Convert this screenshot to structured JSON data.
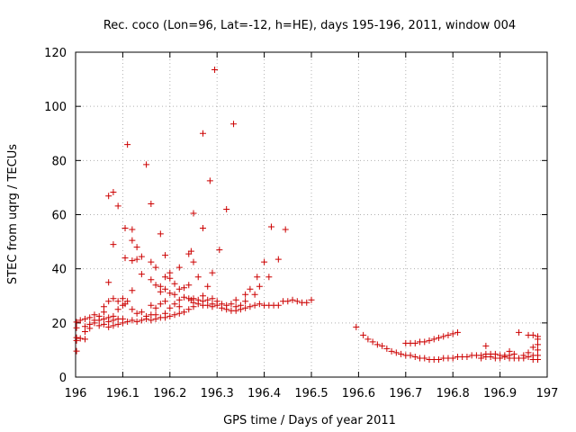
{
  "chart_data": {
    "type": "scatter",
    "title": "Rec. coco (Lon=96, Lat=-12, h=HE), days 195-196, 2011, window 004",
    "xlabel": "GPS time / Days of year 2011",
    "ylabel": "STEC from uqrg / TECUs",
    "xlim": [
      196,
      197
    ],
    "ylim": [
      0,
      120
    ],
    "grid": true,
    "marker": "+",
    "color": "#cc0000",
    "xticks": [
      {
        "value": 196,
        "label": "196"
      },
      {
        "value": 196.1,
        "label": "196.1"
      },
      {
        "value": 196.2,
        "label": "196.2"
      },
      {
        "value": 196.3,
        "label": "196.3"
      },
      {
        "value": 196.4,
        "label": "196.4"
      },
      {
        "value": 196.5,
        "label": "196.5"
      },
      {
        "value": 196.6,
        "label": "196.6"
      },
      {
        "value": 196.7,
        "label": "196.7"
      },
      {
        "value": 196.8,
        "label": "196.8"
      },
      {
        "value": 196.9,
        "label": "196.9"
      },
      {
        "value": 197,
        "label": "197"
      }
    ],
    "yticks": [
      {
        "value": 0,
        "label": "0"
      },
      {
        "value": 20,
        "label": "20"
      },
      {
        "value": 40,
        "label": "40"
      },
      {
        "value": 60,
        "label": "60"
      },
      {
        "value": 80,
        "label": "80"
      },
      {
        "value": 100,
        "label": "100"
      },
      {
        "value": 120,
        "label": "120"
      }
    ],
    "points": [
      [
        196.002,
        9.6
      ],
      [
        196.002,
        13.5
      ],
      [
        196.002,
        14.6
      ],
      [
        196.002,
        18.2
      ],
      [
        196.002,
        20.3
      ],
      [
        196.01,
        14.3
      ],
      [
        196.01,
        21.0
      ],
      [
        196.02,
        14.0
      ],
      [
        196.02,
        16.8
      ],
      [
        196.02,
        18.7
      ],
      [
        196.02,
        21.5
      ],
      [
        196.03,
        18.0
      ],
      [
        196.03,
        19.5
      ],
      [
        196.03,
        22.0
      ],
      [
        196.04,
        20.0
      ],
      [
        196.04,
        21.0
      ],
      [
        196.04,
        23.0
      ],
      [
        196.05,
        19.0
      ],
      [
        196.05,
        21.0
      ],
      [
        196.05,
        22.5
      ],
      [
        196.06,
        19.5
      ],
      [
        196.06,
        21.5
      ],
      [
        196.06,
        24.0
      ],
      [
        196.06,
        26.0
      ],
      [
        196.07,
        18.5
      ],
      [
        196.07,
        20.5
      ],
      [
        196.07,
        22.0
      ],
      [
        196.07,
        28.0
      ],
      [
        196.07,
        35.0
      ],
      [
        196.07,
        66.9
      ],
      [
        196.08,
        19.0
      ],
      [
        196.08,
        21.0
      ],
      [
        196.08,
        22.5
      ],
      [
        196.08,
        29.0
      ],
      [
        196.08,
        49.0
      ],
      [
        196.08,
        68.3
      ],
      [
        196.09,
        19.5
      ],
      [
        196.09,
        21.5
      ],
      [
        196.09,
        25.0
      ],
      [
        196.09,
        28.0
      ],
      [
        196.09,
        63.2
      ],
      [
        196.1,
        20.0
      ],
      [
        196.1,
        21.5
      ],
      [
        196.1,
        26.5
      ],
      [
        196.1,
        29.0
      ],
      [
        196.105,
        27.0
      ],
      [
        196.105,
        44.0
      ],
      [
        196.105,
        55.0
      ],
      [
        196.11,
        20.5
      ],
      [
        196.11,
        28.0
      ],
      [
        196.11,
        85.9
      ],
      [
        196.12,
        21.0
      ],
      [
        196.12,
        25.0
      ],
      [
        196.12,
        32.0
      ],
      [
        196.12,
        43.0
      ],
      [
        196.12,
        50.5
      ],
      [
        196.12,
        54.5
      ],
      [
        196.13,
        20.5
      ],
      [
        196.13,
        23.5
      ],
      [
        196.13,
        43.5
      ],
      [
        196.13,
        48.0
      ],
      [
        196.14,
        21.0
      ],
      [
        196.14,
        24.0
      ],
      [
        196.14,
        38.0
      ],
      [
        196.14,
        44.5
      ],
      [
        196.15,
        21.5
      ],
      [
        196.15,
        22.5
      ],
      [
        196.15,
        78.5
      ],
      [
        196.16,
        21.0
      ],
      [
        196.16,
        23.0
      ],
      [
        196.16,
        26.5
      ],
      [
        196.16,
        36.0
      ],
      [
        196.16,
        42.5
      ],
      [
        196.16,
        64.0
      ],
      [
        196.17,
        21.5
      ],
      [
        196.17,
        23.0
      ],
      [
        196.17,
        25.5
      ],
      [
        196.17,
        34.0
      ],
      [
        196.17,
        40.5
      ],
      [
        196.18,
        22.0
      ],
      [
        196.18,
        27.0
      ],
      [
        196.18,
        31.5
      ],
      [
        196.18,
        33.5
      ],
      [
        196.18,
        52.9
      ],
      [
        196.19,
        22.0
      ],
      [
        196.19,
        23.5
      ],
      [
        196.19,
        28.0
      ],
      [
        196.19,
        32.5
      ],
      [
        196.19,
        37.0
      ],
      [
        196.19,
        45.0
      ],
      [
        196.2,
        22.5
      ],
      [
        196.2,
        25.5
      ],
      [
        196.2,
        31.0
      ],
      [
        196.2,
        36.5
      ],
      [
        196.2,
        38.5
      ],
      [
        196.21,
        23.0
      ],
      [
        196.21,
        27.0
      ],
      [
        196.21,
        30.5
      ],
      [
        196.21,
        34.5
      ],
      [
        196.22,
        23.5
      ],
      [
        196.22,
        26.0
      ],
      [
        196.22,
        28.5
      ],
      [
        196.22,
        32.5
      ],
      [
        196.22,
        40.5
      ],
      [
        196.23,
        24.0
      ],
      [
        196.23,
        29.5
      ],
      [
        196.23,
        33.0
      ],
      [
        196.24,
        25.0
      ],
      [
        196.24,
        29.0
      ],
      [
        196.24,
        34.0
      ],
      [
        196.24,
        45.5
      ],
      [
        196.245,
        46.5
      ],
      [
        196.245,
        28.5
      ],
      [
        196.25,
        26.0
      ],
      [
        196.25,
        27.5
      ],
      [
        196.25,
        29.0
      ],
      [
        196.25,
        42.5
      ],
      [
        196.25,
        60.5
      ],
      [
        196.26,
        27.0
      ],
      [
        196.26,
        28.5
      ],
      [
        196.26,
        37.0
      ],
      [
        196.27,
        26.5
      ],
      [
        196.27,
        28.0
      ],
      [
        196.27,
        30.0
      ],
      [
        196.27,
        55.0
      ],
      [
        196.27,
        90.0
      ],
      [
        196.28,
        26.5
      ],
      [
        196.28,
        28.5
      ],
      [
        196.28,
        33.5
      ],
      [
        196.285,
        72.5
      ],
      [
        196.29,
        26.0
      ],
      [
        196.29,
        27.0
      ],
      [
        196.29,
        29.0
      ],
      [
        196.29,
        38.5
      ],
      [
        196.295,
        113.5
      ],
      [
        196.3,
        26.5
      ],
      [
        196.3,
        28.0
      ],
      [
        196.305,
        47.0
      ],
      [
        196.31,
        25.5
      ],
      [
        196.31,
        27.0
      ],
      [
        196.32,
        25.0
      ],
      [
        196.32,
        26.5
      ],
      [
        196.32,
        62.0
      ],
      [
        196.33,
        24.5
      ],
      [
        196.33,
        27.0
      ],
      [
        196.335,
        93.5
      ],
      [
        196.34,
        24.5
      ],
      [
        196.34,
        26.0
      ],
      [
        196.34,
        28.5
      ],
      [
        196.35,
        25.0
      ],
      [
        196.35,
        26.5
      ],
      [
        196.36,
        25.5
      ],
      [
        196.36,
        28.0
      ],
      [
        196.36,
        30.5
      ],
      [
        196.37,
        26.0
      ],
      [
        196.37,
        32.5
      ],
      [
        196.38,
        26.5
      ],
      [
        196.38,
        30.5
      ],
      [
        196.385,
        37.0
      ],
      [
        196.39,
        27.0
      ],
      [
        196.39,
        33.5
      ],
      [
        196.4,
        26.5
      ],
      [
        196.4,
        42.5
      ],
      [
        196.41,
        26.5
      ],
      [
        196.41,
        37.0
      ],
      [
        196.415,
        55.5
      ],
      [
        196.42,
        26.5
      ],
      [
        196.43,
        26.5
      ],
      [
        196.43,
        43.5
      ],
      [
        196.44,
        28.0
      ],
      [
        196.445,
        54.5
      ],
      [
        196.45,
        28.0
      ],
      [
        196.46,
        28.5
      ],
      [
        196.47,
        28.0
      ],
      [
        196.48,
        27.5
      ],
      [
        196.49,
        27.5
      ],
      [
        196.5,
        28.5
      ],
      [
        196.595,
        18.5
      ],
      [
        196.61,
        15.5
      ],
      [
        196.62,
        14.0
      ],
      [
        196.63,
        13.0
      ],
      [
        196.64,
        12.0
      ],
      [
        196.65,
        11.5
      ],
      [
        196.66,
        10.5
      ],
      [
        196.67,
        9.5
      ],
      [
        196.68,
        9.0
      ],
      [
        196.69,
        8.5
      ],
      [
        196.7,
        8.0
      ],
      [
        196.7,
        12.5
      ],
      [
        196.71,
        8.0
      ],
      [
        196.71,
        12.5
      ],
      [
        196.72,
        7.5
      ],
      [
        196.72,
        12.5
      ],
      [
        196.73,
        7.0
      ],
      [
        196.73,
        13.0
      ],
      [
        196.74,
        7.0
      ],
      [
        196.74,
        13.0
      ],
      [
        196.75,
        6.5
      ],
      [
        196.75,
        13.5
      ],
      [
        196.76,
        6.5
      ],
      [
        196.76,
        14.0
      ],
      [
        196.77,
        6.5
      ],
      [
        196.77,
        14.5
      ],
      [
        196.78,
        7.0
      ],
      [
        196.78,
        15.0
      ],
      [
        196.79,
        7.0
      ],
      [
        196.79,
        15.5
      ],
      [
        196.8,
        7.0
      ],
      [
        196.8,
        16.0
      ],
      [
        196.81,
        7.5
      ],
      [
        196.81,
        16.5
      ],
      [
        196.82,
        7.5
      ],
      [
        196.83,
        7.5
      ],
      [
        196.84,
        8.0
      ],
      [
        196.85,
        8.0
      ],
      [
        196.86,
        8.0
      ],
      [
        196.86,
        7.0
      ],
      [
        196.87,
        8.5
      ],
      [
        196.87,
        7.5
      ],
      [
        196.87,
        11.5
      ],
      [
        196.88,
        8.5
      ],
      [
        196.88,
        7.5
      ],
      [
        196.89,
        8.5
      ],
      [
        196.89,
        7.0
      ],
      [
        196.9,
        8.0
      ],
      [
        196.9,
        7.0
      ],
      [
        196.91,
        8.0
      ],
      [
        196.91,
        7.5
      ],
      [
        196.92,
        8.0
      ],
      [
        196.92,
        7.0
      ],
      [
        196.92,
        9.5
      ],
      [
        196.93,
        8.5
      ],
      [
        196.93,
        7.0
      ],
      [
        196.94,
        7.0
      ],
      [
        196.94,
        16.5
      ],
      [
        196.95,
        7.0
      ],
      [
        196.95,
        8.0
      ],
      [
        196.96,
        7.5
      ],
      [
        196.96,
        9.0
      ],
      [
        196.96,
        15.5
      ],
      [
        196.97,
        6.5
      ],
      [
        196.97,
        8.0
      ],
      [
        196.97,
        11.0
      ],
      [
        196.97,
        15.5
      ],
      [
        196.98,
        6.5
      ],
      [
        196.98,
        8.0
      ],
      [
        196.98,
        10.0
      ],
      [
        196.98,
        12.0
      ],
      [
        196.98,
        14.0
      ],
      [
        196.98,
        15.0
      ]
    ]
  }
}
